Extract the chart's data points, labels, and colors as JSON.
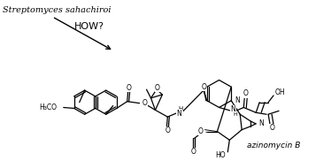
{
  "title_text": "Streptomyces sahachiroi",
  "arrow_label": "HOW?",
  "compound_name": "azinomycin B",
  "background_color": "#ffffff",
  "figsize": [
    3.74,
    1.82
  ],
  "dpi": 100
}
